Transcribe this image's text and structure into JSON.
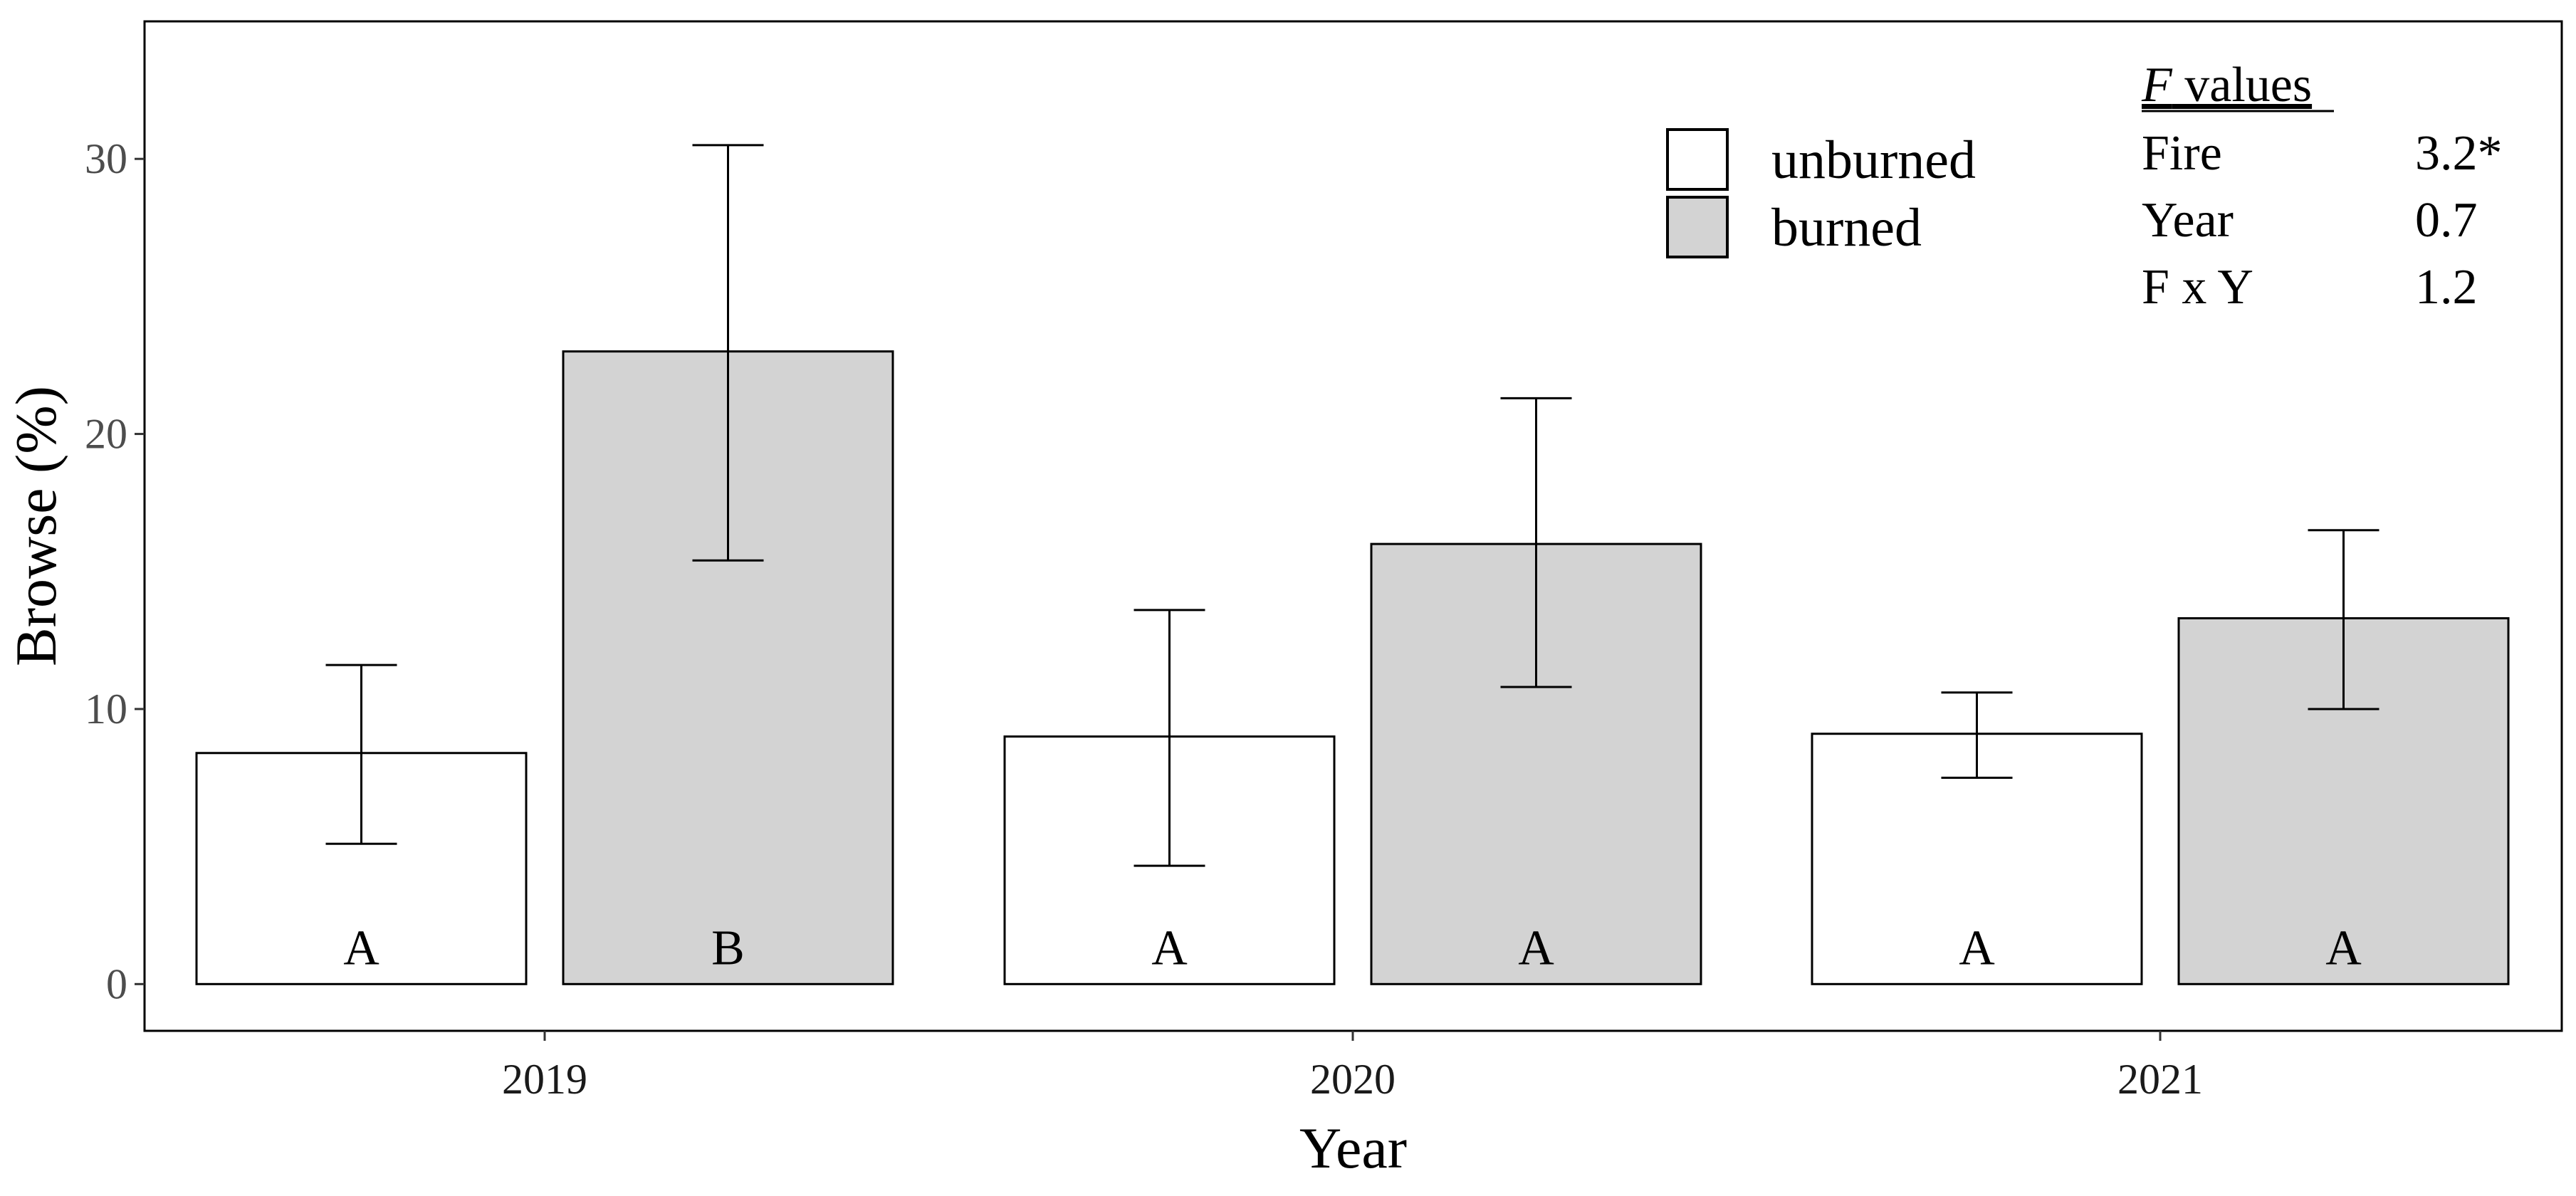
{
  "chart_data": {
    "type": "bar",
    "xlabel": "Year",
    "ylabel": "Browse (%)",
    "ylim": [
      -1.7,
      35
    ],
    "yticks": [
      0,
      10,
      20,
      30
    ],
    "grid": false,
    "legend_position": "top-right",
    "categories": [
      "2019",
      "2020",
      "2021"
    ],
    "series": [
      {
        "name": "unburned",
        "fill": "#ffffff",
        "values": [
          8.4,
          9.0,
          9.1
        ],
        "err_low": [
          5.1,
          4.3,
          7.5
        ],
        "err_high": [
          11.6,
          13.6,
          10.6
        ],
        "letters": [
          "A",
          "A",
          "A"
        ]
      },
      {
        "name": "burned",
        "fill": "#d3d3d3",
        "values": [
          23.0,
          16.0,
          13.3
        ],
        "err_low": [
          15.4,
          10.8,
          10.0
        ],
        "err_high": [
          30.5,
          21.3,
          16.5
        ],
        "letters": [
          "B",
          "A",
          "A"
        ]
      }
    ],
    "annotation": {
      "heading_italic": "F",
      "heading_rest": " values",
      "rows": [
        {
          "term": "Fire",
          "value": "3.2*"
        },
        {
          "term": "Year",
          "value": "0.7"
        },
        {
          "term": "F x Y",
          "value": "1.2"
        }
      ]
    }
  }
}
